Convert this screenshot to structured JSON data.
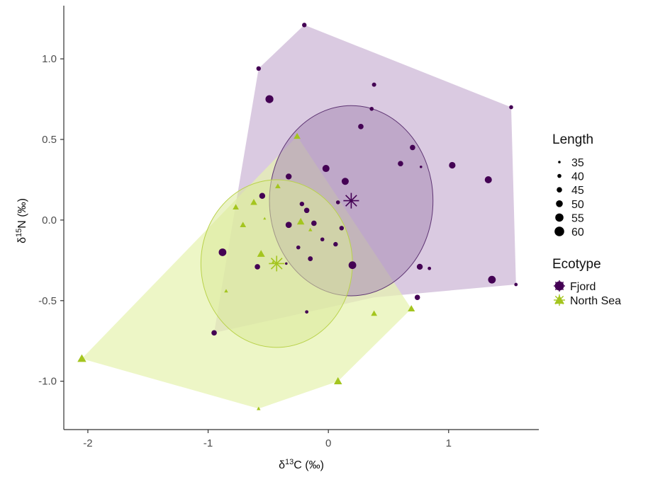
{
  "chart_data": {
    "type": "scatter",
    "xlabel_prefix": "δ",
    "xlabel_sup": "13",
    "xlabel_suffix": "C (‰)",
    "ylabel_prefix": "δ",
    "ylabel_sup": "15",
    "ylabel_suffix": "N (‰)",
    "xlim": [
      -2.2,
      1.75
    ],
    "ylim": [
      -1.3,
      1.33
    ],
    "xticks": [
      -2,
      -1,
      0,
      1
    ],
    "xtick_labels": [
      "-2",
      "-1",
      "0",
      "1"
    ],
    "yticks": [
      -1.0,
      -0.5,
      0.0,
      0.5,
      1.0
    ],
    "ytick_labels": [
      "-1.0",
      "-0.5",
      "0.0",
      "0.5",
      "1.0"
    ],
    "grid": false,
    "legend_position": "right",
    "size_legend": {
      "title": "Length",
      "items": [
        {
          "label": "35",
          "value": 35
        },
        {
          "label": "40",
          "value": 40
        },
        {
          "label": "45",
          "value": 45
        },
        {
          "label": "50",
          "value": 50
        },
        {
          "label": "55",
          "value": 55
        },
        {
          "label": "60",
          "value": 60
        }
      ]
    },
    "shape_legend": {
      "title": "Ecotype",
      "items": [
        {
          "label": "Fjord",
          "shape": "circle",
          "color": "#440154"
        },
        {
          "label": "North Sea",
          "shape": "triangle",
          "color": "#a4c51f"
        }
      ]
    },
    "series": [
      {
        "name": "Fjord",
        "shape": "circle",
        "color": "#440154",
        "hull_fill": "#d4c1dc",
        "ellipse_fill": "#a98db6",
        "ellipse_stroke": "#5e3473",
        "centroid": [
          0.19,
          0.12
        ],
        "ellipse_radius": [
          0.68,
          0.59
        ],
        "hull": [
          [
            -0.2,
            1.21
          ],
          [
            1.52,
            0.7
          ],
          [
            1.56,
            -0.4
          ],
          [
            0.38,
            -0.48
          ],
          [
            -0.95,
            -0.7
          ],
          [
            -0.58,
            0.94
          ]
        ],
        "points": [
          {
            "x": -0.2,
            "y": 1.21,
            "len": 42
          },
          {
            "x": -0.58,
            "y": 0.94,
            "len": 42
          },
          {
            "x": 0.38,
            "y": 0.84,
            "len": 41
          },
          {
            "x": -0.49,
            "y": 0.75,
            "len": 54
          },
          {
            "x": 1.52,
            "y": 0.7,
            "len": 40
          },
          {
            "x": 0.36,
            "y": 0.69,
            "len": 40
          },
          {
            "x": 0.27,
            "y": 0.58,
            "len": 45
          },
          {
            "x": 0.7,
            "y": 0.45,
            "len": 45
          },
          {
            "x": 0.6,
            "y": 0.35,
            "len": 45
          },
          {
            "x": 0.77,
            "y": 0.33,
            "len": 35
          },
          {
            "x": 1.03,
            "y": 0.34,
            "len": 49
          },
          {
            "x": -0.02,
            "y": 0.32,
            "len": 51
          },
          {
            "x": -0.33,
            "y": 0.27,
            "len": 47
          },
          {
            "x": 0.14,
            "y": 0.24,
            "len": 51
          },
          {
            "x": 1.33,
            "y": 0.25,
            "len": 51
          },
          {
            "x": -0.55,
            "y": 0.15,
            "len": 47
          },
          {
            "x": -0.22,
            "y": 0.1,
            "len": 42
          },
          {
            "x": 0.08,
            "y": 0.11,
            "len": 40
          },
          {
            "x": -0.18,
            "y": 0.06,
            "len": 45
          },
          {
            "x": -0.12,
            "y": -0.02,
            "len": 45
          },
          {
            "x": -0.33,
            "y": -0.03,
            "len": 48
          },
          {
            "x": 0.11,
            "y": -0.05,
            "len": 42
          },
          {
            "x": -0.05,
            "y": -0.12,
            "len": 40
          },
          {
            "x": 0.06,
            "y": -0.15,
            "len": 42
          },
          {
            "x": -0.25,
            "y": -0.17,
            "len": 40
          },
          {
            "x": -0.88,
            "y": -0.2,
            "len": 53
          },
          {
            "x": -0.15,
            "y": -0.24,
            "len": 43
          },
          {
            "x": -0.35,
            "y": -0.27,
            "len": 35
          },
          {
            "x": -0.59,
            "y": -0.29,
            "len": 45
          },
          {
            "x": 0.2,
            "y": -0.28,
            "len": 53
          },
          {
            "x": 0.76,
            "y": -0.29,
            "len": 47
          },
          {
            "x": 0.84,
            "y": -0.3,
            "len": 38
          },
          {
            "x": 1.36,
            "y": -0.37,
            "len": 53
          },
          {
            "x": 1.56,
            "y": -0.4,
            "len": 38
          },
          {
            "x": 0.74,
            "y": -0.48,
            "len": 45
          },
          {
            "x": -0.18,
            "y": -0.57,
            "len": 38
          },
          {
            "x": -0.95,
            "y": -0.7,
            "len": 45
          }
        ]
      },
      {
        "name": "North Sea",
        "shape": "triangle",
        "color": "#a4c51f",
        "hull_fill": "#e6f2b0",
        "ellipse_fill": "#dbe99a",
        "ellipse_stroke": "#b9d24a",
        "centroid": [
          -0.43,
          -0.27
        ],
        "ellipse_radius": [
          0.63,
          0.52
        ],
        "hull": [
          [
            -0.26,
            0.52
          ],
          [
            0.69,
            -0.55
          ],
          [
            0.08,
            -1.0
          ],
          [
            -0.58,
            -1.17
          ],
          [
            -2.05,
            -0.86
          ]
        ],
        "points": [
          {
            "x": -0.26,
            "y": 0.52,
            "len": 47
          },
          {
            "x": -0.42,
            "y": 0.21,
            "len": 43
          },
          {
            "x": -0.62,
            "y": 0.11,
            "len": 47
          },
          {
            "x": -0.77,
            "y": 0.08,
            "len": 45
          },
          {
            "x": -0.53,
            "y": 0.01,
            "len": 35
          },
          {
            "x": -0.23,
            "y": -0.01,
            "len": 49
          },
          {
            "x": -0.71,
            "y": -0.03,
            "len": 45
          },
          {
            "x": -0.15,
            "y": -0.06,
            "len": 38
          },
          {
            "x": -0.56,
            "y": -0.21,
            "len": 50
          },
          {
            "x": -0.46,
            "y": -0.26,
            "len": 35
          },
          {
            "x": -0.85,
            "y": -0.44,
            "len": 38
          },
          {
            "x": 0.38,
            "y": -0.58,
            "len": 45
          },
          {
            "x": 0.69,
            "y": -0.55,
            "len": 48
          },
          {
            "x": 0.08,
            "y": -1.0,
            "len": 51
          },
          {
            "x": -0.58,
            "y": -1.17,
            "len": 38
          },
          {
            "x": -2.05,
            "y": -0.86,
            "len": 53
          }
        ]
      }
    ]
  }
}
